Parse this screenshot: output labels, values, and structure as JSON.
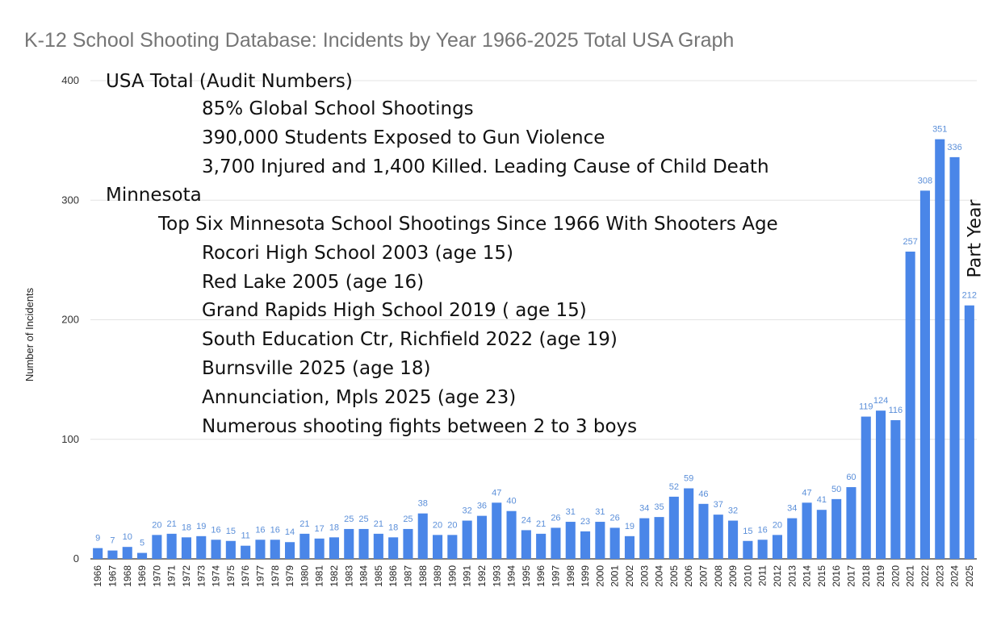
{
  "chart_data": {
    "type": "bar",
    "title": "K-12 School Shooting Database: Incidents by Year 1966-2025 Total USA Graph",
    "xlabel": "",
    "ylabel": "Number of Incidents",
    "ylim": [
      0,
      400
    ],
    "yticks": [
      0,
      100,
      200,
      300,
      400
    ],
    "grid": true,
    "bar_color": "#4a86e8",
    "label_color": "#5b8fd9",
    "categories": [
      "1966",
      "1967",
      "1968",
      "1969",
      "1970",
      "1971",
      "1972",
      "1973",
      "1974",
      "1975",
      "1976",
      "1977",
      "1978",
      "1979",
      "1980",
      "1981",
      "1982",
      "1983",
      "1984",
      "1985",
      "1986",
      "1987",
      "1988",
      "1989",
      "1990",
      "1991",
      "1992",
      "1993",
      "1994",
      "1995",
      "1996",
      "1997",
      "1998",
      "1999",
      "2000",
      "2001",
      "2002",
      "2003",
      "2004",
      "2005",
      "2006",
      "2007",
      "2008",
      "2009",
      "2010",
      "2011",
      "2012",
      "2013",
      "2014",
      "2015",
      "2016",
      "2017",
      "2018",
      "2019",
      "2020",
      "2021",
      "2022",
      "2023",
      "2024",
      "2025"
    ],
    "values": [
      9,
      7,
      10,
      5,
      20,
      21,
      18,
      19,
      16,
      15,
      11,
      16,
      16,
      14,
      21,
      17,
      18,
      25,
      25,
      21,
      18,
      25,
      38,
      20,
      20,
      32,
      36,
      47,
      40,
      24,
      21,
      26,
      31,
      23,
      31,
      26,
      19,
      34,
      35,
      52,
      59,
      46,
      37,
      32,
      15,
      16,
      20,
      34,
      47,
      41,
      50,
      60,
      119,
      124,
      116,
      257,
      308,
      351,
      336,
      212
    ],
    "annotation_lines": [
      "USA Total (Audit Numbers)",
      "85% Global School Shootings",
      "390,000 Students Exposed to Gun Violence",
      "3,700 Injured and 1,400 Killed. Leading Cause of Child Death",
      "Minnesota",
      "Top Six Minnesota School Shootings Since 1966 With Shooters Age",
      "Rocori High School 2003 (age 15)",
      "Red Lake 2005 (age 16)",
      "Grand Rapids High School 2019 ( age 15)",
      "South Education Ctr, Richfield 2022 (age 19)",
      "Burnsville 2025 (age 18)",
      "Annunciation, Mpls 2025 (age 23)",
      "Numerous shooting fights between 2 to 3 boys"
    ],
    "part_year_label": "Part Year"
  }
}
